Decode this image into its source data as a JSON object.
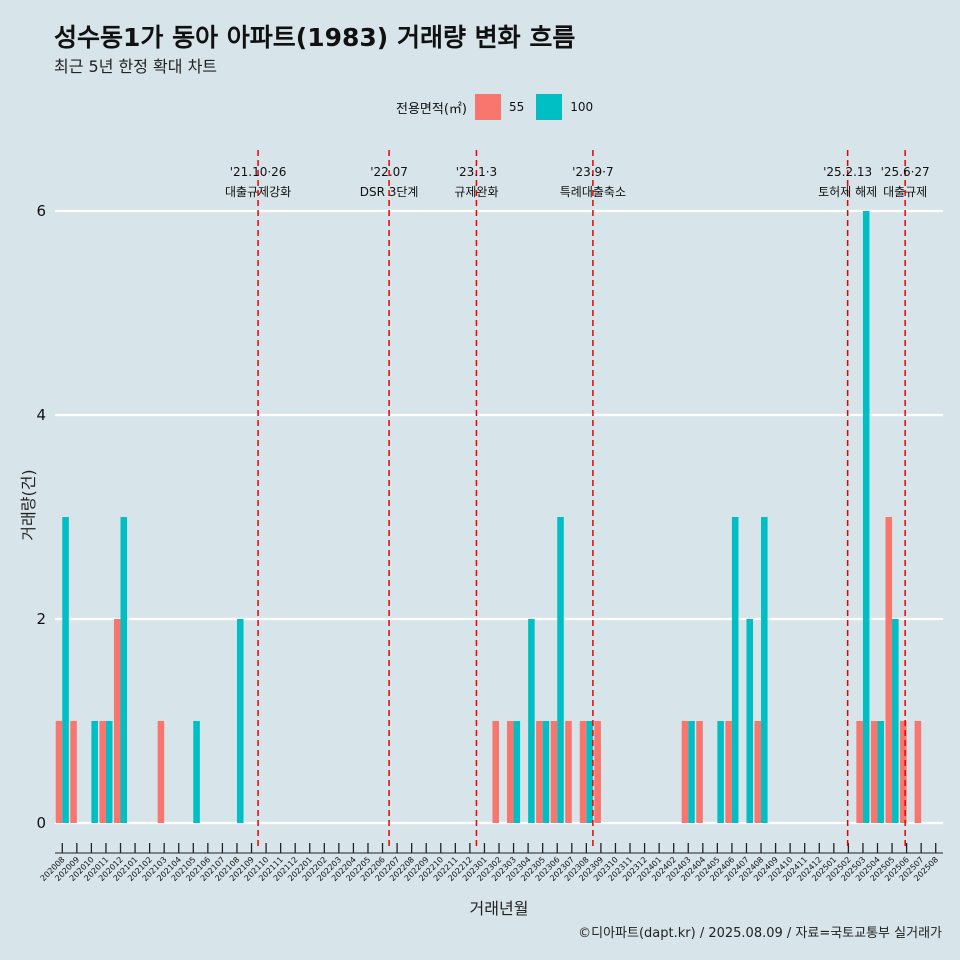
{
  "title": "성수동1가 동아 아파트(1983) 거래량 변화 흐름",
  "subtitle": "최근 5년 한정 확대 차트",
  "legend": {
    "title": "전용면적(㎡)",
    "items": [
      {
        "label": "55",
        "color": "#f8766d"
      },
      {
        "label": "100",
        "color": "#00bfc4"
      }
    ]
  },
  "caption": "©디아파트(dapt.kr) / 2025.08.09 / 자료=국토교통부 실거래가",
  "chart_data": {
    "type": "bar",
    "xlabel": "거래년월",
    "ylabel": "거래량(건)",
    "ylim": [
      0,
      6.6
    ],
    "yticks": [
      0,
      2,
      4,
      6
    ],
    "categories": [
      "202008",
      "202009",
      "202010",
      "202011",
      "202012",
      "202101",
      "202102",
      "202103",
      "202104",
      "202105",
      "202106",
      "202107",
      "202108",
      "202109",
      "202110",
      "202111",
      "202112",
      "202201",
      "202202",
      "202203",
      "202204",
      "202205",
      "202206",
      "202207",
      "202208",
      "202209",
      "202210",
      "202211",
      "202212",
      "202301",
      "202302",
      "202303",
      "202304",
      "202305",
      "202306",
      "202307",
      "202308",
      "202309",
      "202310",
      "202311",
      "202312",
      "202401",
      "202402",
      "202403",
      "202404",
      "202405",
      "202406",
      "202407",
      "202408",
      "202409",
      "202410",
      "202411",
      "202412",
      "202501",
      "202502",
      "202503",
      "202504",
      "202505",
      "202506",
      "202507",
      "202508"
    ],
    "series": [
      {
        "name": "55",
        "color": "#f8766d",
        "values": [
          1,
          1,
          0,
          1,
          2,
          0,
          0,
          1,
          0,
          0,
          0,
          0,
          0,
          0,
          0,
          0,
          0,
          0,
          0,
          0,
          0,
          0,
          0,
          0,
          0,
          0,
          0,
          0,
          0,
          0,
          1,
          1,
          0,
          1,
          1,
          1,
          1,
          1,
          0,
          0,
          0,
          0,
          0,
          1,
          1,
          0,
          1,
          0,
          1,
          0,
          0,
          0,
          0,
          0,
          0,
          1,
          1,
          3,
          1,
          1,
          0
        ]
      },
      {
        "name": "100",
        "color": "#00bfc4",
        "values": [
          3,
          0,
          1,
          1,
          3,
          0,
          0,
          0,
          0,
          1,
          0,
          0,
          2,
          0,
          0,
          0,
          0,
          0,
          0,
          0,
          0,
          0,
          0,
          0,
          0,
          0,
          0,
          0,
          0,
          0,
          0,
          1,
          2,
          1,
          3,
          0,
          1,
          0,
          0,
          0,
          0,
          0,
          0,
          1,
          0,
          1,
          3,
          2,
          3,
          0,
          0,
          0,
          0,
          0,
          0,
          6,
          1,
          2,
          0,
          0,
          0
        ]
      }
    ],
    "events": [
      {
        "date": "'21.10·26",
        "label": "대출규제강화",
        "pos": 13.95
      },
      {
        "date": "'22.07",
        "label": "DSR 3단계",
        "pos": 22.95
      },
      {
        "date": "'23.1·3",
        "label": "규제완화",
        "pos": 28.95
      },
      {
        "date": "'23.9·7",
        "label": "특례대출축소",
        "pos": 36.95
      },
      {
        "date": "'25.2.13",
        "label": "토허제 해제",
        "pos": 54.45
      },
      {
        "date": "'25.6·27",
        "label": "대출규제",
        "pos": 58.4
      }
    ]
  }
}
